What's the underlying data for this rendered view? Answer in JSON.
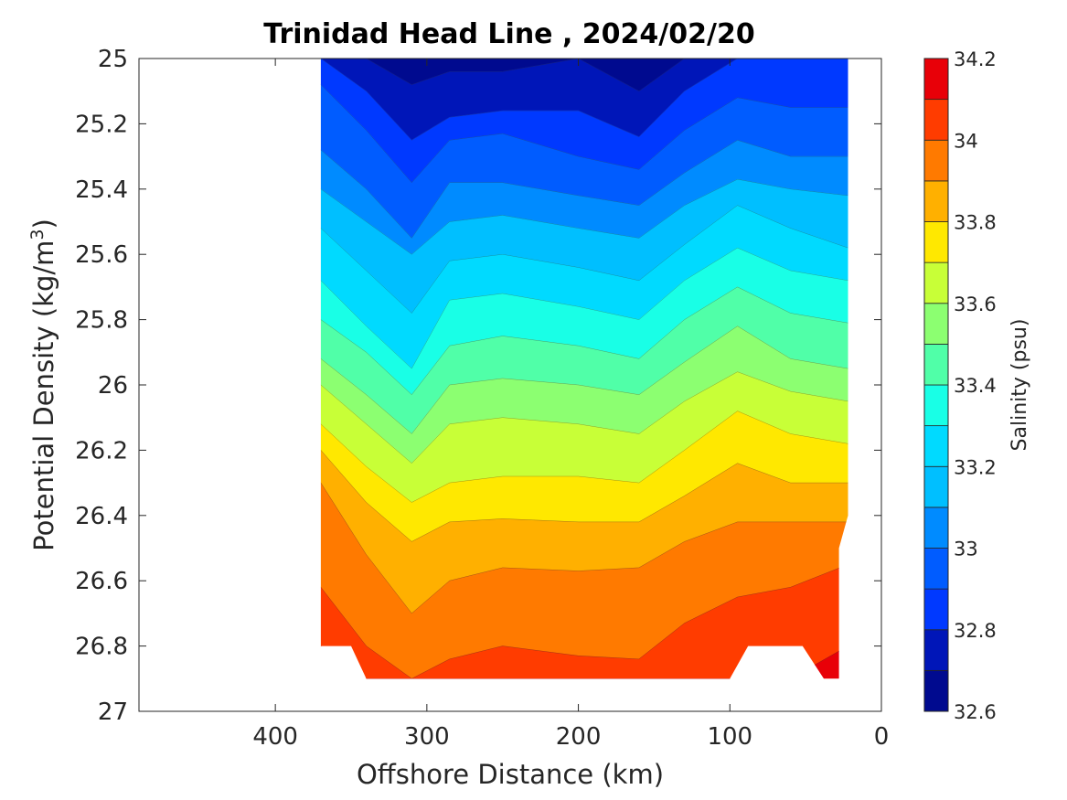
{
  "chart_data": {
    "type": "contour",
    "title": "Trinidad Head Line , 2024/02/20",
    "xlabel": "Offshore Distance (km)",
    "ylabel_base": "Potential Density (kg/m",
    "ylabel_exp": "3",
    "ylabel_close": ")",
    "x_reversed": true,
    "y_reversed": true,
    "xlim": [
      0,
      490
    ],
    "ylim": [
      25,
      27
    ],
    "x_ticks": [
      400,
      300,
      200,
      100,
      0
    ],
    "y_ticks": [
      "25",
      "25.2",
      "25.4",
      "25.6",
      "25.8",
      "26",
      "26.2",
      "26.4",
      "26.6",
      "26.8",
      "27"
    ],
    "x_tick_labels": [
      "400",
      "300",
      "200",
      "100",
      "0"
    ],
    "data_x_extent_km": [
      22,
      370
    ],
    "colorbar": {
      "label": "Salinity (psu)",
      "min": 32.6,
      "max": 34.2,
      "tick_labels": [
        "34.2",
        "34",
        "33.8",
        "33.6",
        "33.4",
        "33.2",
        "33",
        "32.8",
        "32.6"
      ],
      "levels": [
        32.6,
        32.7,
        32.8,
        32.9,
        33.0,
        33.1,
        33.2,
        33.3,
        33.4,
        33.5,
        33.6,
        33.7,
        33.8,
        33.9,
        34.0,
        34.1,
        34.2
      ],
      "colors": [
        "#000a8f",
        "#0016b8",
        "#0039ff",
        "#005cff",
        "#008bff",
        "#00bfff",
        "#00daff",
        "#19ffe6",
        "#50ffa8",
        "#8cff71",
        "#c8ff37",
        "#ffe800",
        "#ffb000",
        "#ff7a00",
        "#ff3c00",
        "#e80008",
        "#b30000"
      ]
    },
    "isoline_x_km": [
      370,
      340,
      310,
      285,
      250,
      200,
      160,
      130,
      95,
      60,
      22
    ],
    "isolines": [
      {
        "salinity": 32.7,
        "depth": [
          25.0,
          25.0,
          25.08,
          25.04,
          25.04,
          25.0,
          25.1,
          25.0,
          25.0,
          25.0,
          25.0
        ]
      },
      {
        "salinity": 32.8,
        "depth": [
          25.0,
          25.1,
          25.25,
          25.18,
          25.16,
          25.16,
          25.24,
          25.1,
          25.0,
          25.0,
          25.0
        ]
      },
      {
        "salinity": 32.9,
        "depth": [
          25.08,
          25.22,
          25.38,
          25.25,
          25.23,
          25.3,
          25.34,
          25.22,
          25.12,
          25.15,
          25.15
        ]
      },
      {
        "salinity": 33.0,
        "depth": [
          25.28,
          25.4,
          25.55,
          25.38,
          25.38,
          25.42,
          25.45,
          25.35,
          25.25,
          25.3,
          25.3
        ]
      },
      {
        "salinity": 33.1,
        "depth": [
          25.4,
          25.5,
          25.6,
          25.5,
          25.48,
          25.52,
          25.55,
          25.45,
          25.37,
          25.4,
          25.42
        ]
      },
      {
        "salinity": 33.2,
        "depth": [
          25.52,
          25.65,
          25.78,
          25.62,
          25.6,
          25.64,
          25.68,
          25.57,
          25.45,
          25.52,
          25.58
        ]
      },
      {
        "salinity": 33.3,
        "depth": [
          25.68,
          25.82,
          25.95,
          25.74,
          25.72,
          25.76,
          25.8,
          25.68,
          25.58,
          25.65,
          25.68
        ]
      },
      {
        "salinity": 33.4,
        "depth": [
          25.8,
          25.9,
          26.03,
          25.88,
          25.85,
          25.88,
          25.92,
          25.8,
          25.7,
          25.78,
          25.81
        ]
      },
      {
        "salinity": 33.5,
        "depth": [
          25.92,
          26.03,
          26.15,
          26.0,
          25.98,
          26.0,
          26.03,
          25.93,
          25.82,
          25.92,
          25.95
        ]
      },
      {
        "salinity": 33.6,
        "depth": [
          26.0,
          26.12,
          26.24,
          26.12,
          26.1,
          26.12,
          26.15,
          26.05,
          25.96,
          26.02,
          26.05
        ]
      },
      {
        "salinity": 33.7,
        "depth": [
          26.12,
          26.25,
          26.36,
          26.3,
          26.28,
          26.28,
          26.3,
          26.2,
          26.08,
          26.15,
          26.18
        ]
      },
      {
        "salinity": 33.8,
        "depth": [
          26.2,
          26.36,
          26.48,
          26.42,
          26.41,
          26.42,
          26.42,
          26.34,
          26.24,
          26.3,
          26.3
        ]
      },
      {
        "salinity": 33.9,
        "depth": [
          26.3,
          26.52,
          26.7,
          26.6,
          26.56,
          26.57,
          26.56,
          26.48,
          26.42,
          26.42,
          26.42
        ]
      },
      {
        "salinity": 34.0,
        "depth": [
          26.62,
          26.8,
          26.9,
          26.84,
          26.8,
          26.83,
          26.84,
          26.73,
          26.65,
          26.62,
          26.55
        ]
      },
      {
        "salinity": 34.1,
        "depth": [
          26.8,
          26.9,
          26.9,
          26.9,
          26.9,
          26.9,
          26.9,
          26.9,
          26.9,
          26.9,
          26.8
        ]
      }
    ],
    "grid": false
  }
}
